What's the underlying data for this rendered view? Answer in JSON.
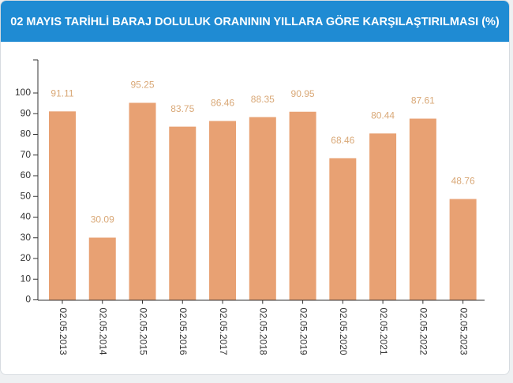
{
  "chart_data": {
    "type": "bar",
    "title": "02 MAYIS TARİHLİ BARAJ DOLULUK ORANININ YILLARA GÖRE KARŞILAŞTIRILMASI (%)",
    "categories": [
      "02.05.2013",
      "02.05.2014",
      "02.05.2015",
      "02.05.2016",
      "02.05.2017",
      "02.05.2018",
      "02.05.2019",
      "02.05.2020",
      "02.05.2021",
      "02.05.2022",
      "02.05.2023"
    ],
    "values": [
      91.11,
      30.09,
      95.25,
      83.75,
      86.46,
      88.35,
      90.95,
      68.46,
      80.44,
      87.61,
      48.76
    ],
    "color": "#e8a173",
    "ylim": [
      0,
      116
    ],
    "yticks": [
      0,
      10,
      20,
      30,
      40,
      50,
      60,
      70,
      80,
      90,
      100
    ],
    "grid": false
  }
}
